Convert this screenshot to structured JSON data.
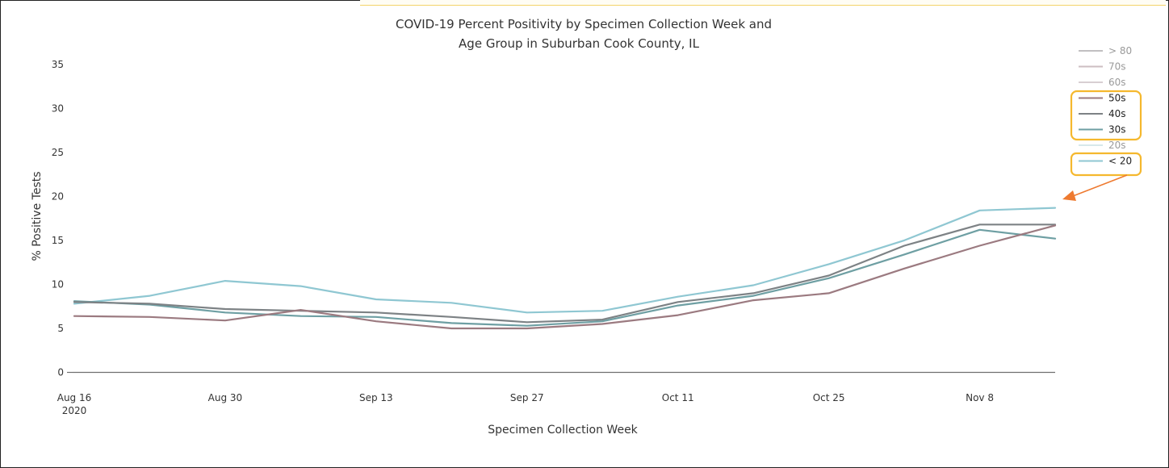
{
  "chart_data": {
    "type": "line",
    "title_lines": [
      "COVID-19 Percent Positivity by Specimen Collection Week and",
      "Age Group in Suburban Cook County, IL"
    ],
    "xlabel": "Specimen Collection Week",
    "ylabel": "% Positive Tests",
    "ylim": [
      0,
      37
    ],
    "yticks": [
      0,
      5,
      10,
      15,
      20,
      25,
      30,
      35
    ],
    "xticks": [
      {
        "week": 0,
        "line1": "Aug 16",
        "line2": "2020"
      },
      {
        "week": 2,
        "line1": "Aug 30",
        "line2": ""
      },
      {
        "week": 4,
        "line1": "Sep 13",
        "line2": ""
      },
      {
        "week": 6,
        "line1": "Sep 27",
        "line2": ""
      },
      {
        "week": 8,
        "line1": "Oct 11",
        "line2": ""
      },
      {
        "week": 10,
        "line1": "Oct 25",
        "line2": ""
      },
      {
        "week": 12,
        "line1": "Nov 8",
        "line2": ""
      }
    ],
    "x_weeks": [
      0,
      1,
      2,
      3,
      4,
      5,
      6,
      7,
      8,
      9,
      10,
      11,
      12,
      13
    ],
    "grid": false,
    "legend_position": "right",
    "series": [
      {
        "name": "> 80",
        "color": "#8f8b8f",
        "visible": false,
        "values": []
      },
      {
        "name": "70s",
        "color": "#a58a92",
        "visible": false,
        "values": []
      },
      {
        "name": "60s",
        "color": "#b9a8ae",
        "visible": false,
        "values": []
      },
      {
        "name": "50s",
        "color": "#9b7a80",
        "visible": true,
        "values": [
          6.4,
          6.3,
          5.9,
          7.1,
          5.8,
          5.0,
          5.0,
          5.5,
          6.5,
          8.2,
          9.0,
          11.8,
          14.4,
          16.7
        ],
        "highlighted": true
      },
      {
        "name": "40s",
        "color": "#7d8285",
        "visible": true,
        "values": [
          8.0,
          7.8,
          7.2,
          7.0,
          6.8,
          6.3,
          5.7,
          6.0,
          8.0,
          9.0,
          11.0,
          14.4,
          16.8,
          16.8
        ],
        "highlighted": true
      },
      {
        "name": "30s",
        "color": "#6e9fa3",
        "visible": true,
        "values": [
          8.1,
          7.7,
          6.8,
          6.4,
          6.3,
          5.6,
          5.3,
          5.8,
          7.6,
          8.7,
          10.7,
          13.4,
          16.2,
          15.2
        ],
        "highlighted": true
      },
      {
        "name": "20s",
        "color": "#b8d6dc",
        "visible": false,
        "values": []
      },
      {
        "name": "< 20",
        "color": "#8fc7d2",
        "visible": true,
        "values": [
          7.8,
          8.7,
          10.4,
          9.8,
          8.3,
          7.9,
          6.8,
          7.0,
          8.6,
          9.9,
          12.3,
          15.0,
          18.4,
          18.7
        ],
        "highlighted": true
      }
    ]
  },
  "annotation": {
    "box_color": "#f5b82e",
    "arrow_color": "#ee7a30"
  }
}
